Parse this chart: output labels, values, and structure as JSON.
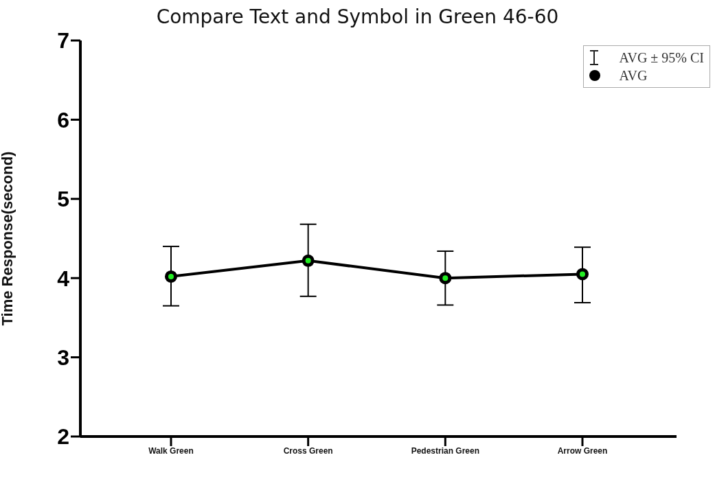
{
  "chart_data": {
    "type": "line",
    "title": "Compare Text and Symbol in Green 46-60",
    "ylabel": "Time Response(second)",
    "categories": [
      "Walk Green",
      "Cross Green",
      "Pedestrian Green",
      "Arrow Green"
    ],
    "series": [
      {
        "name": "AVG",
        "color": "#000000",
        "values": [
          4.02,
          4.22,
          4.0,
          4.05
        ],
        "errors": [
          [
            3.65,
            4.4
          ],
          [
            3.77,
            4.68
          ],
          [
            3.66,
            4.34
          ],
          [
            3.69,
            4.39
          ]
        ]
      }
    ],
    "annotations": [
      "AVG ± 95% CI"
    ],
    "ylim": [
      2,
      7
    ],
    "yticks": [
      2,
      3,
      4,
      5,
      6,
      7
    ],
    "grid": false,
    "legend": "top right",
    "marker": "circle",
    "line_style": "solid"
  }
}
